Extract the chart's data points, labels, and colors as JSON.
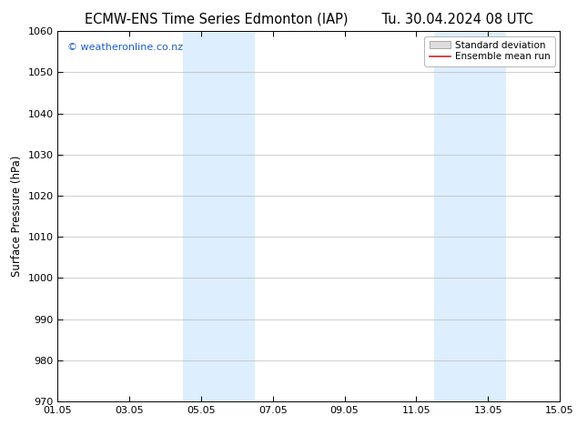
{
  "title_left": "ECMW-ENS Time Series Edmonton (IAP)",
  "title_right": "Tu. 30.04.2024 08 UTC",
  "ylabel": "Surface Pressure (hPa)",
  "ylim": [
    970,
    1060
  ],
  "yticks": [
    970,
    980,
    990,
    1000,
    1010,
    1020,
    1030,
    1040,
    1050,
    1060
  ],
  "xtick_labels": [
    "01.05",
    "03.05",
    "05.05",
    "07.05",
    "09.05",
    "11.05",
    "13.05",
    "15.05"
  ],
  "xtick_positions": [
    0,
    2,
    4,
    6,
    8,
    10,
    12,
    14
  ],
  "xlim": [
    0,
    14
  ],
  "shade_bands": [
    {
      "x_start": 3.5,
      "x_end": 5.5,
      "color": "#ddeeff"
    },
    {
      "x_start": 10.5,
      "x_end": 12.5,
      "color": "#ddeeff"
    }
  ],
  "watermark": "© weatheronline.co.nz",
  "watermark_color": "#1a5dcc",
  "background_color": "#ffffff",
  "grid_color": "#bbbbbb",
  "legend_std_facecolor": "#dddddd",
  "legend_std_edgecolor": "#aaaaaa",
  "legend_mean_color": "#cc2222",
  "title_fontsize": 10.5,
  "ylabel_fontsize": 8.5,
  "tick_fontsize": 8,
  "watermark_fontsize": 8,
  "legend_fontsize": 7.5
}
